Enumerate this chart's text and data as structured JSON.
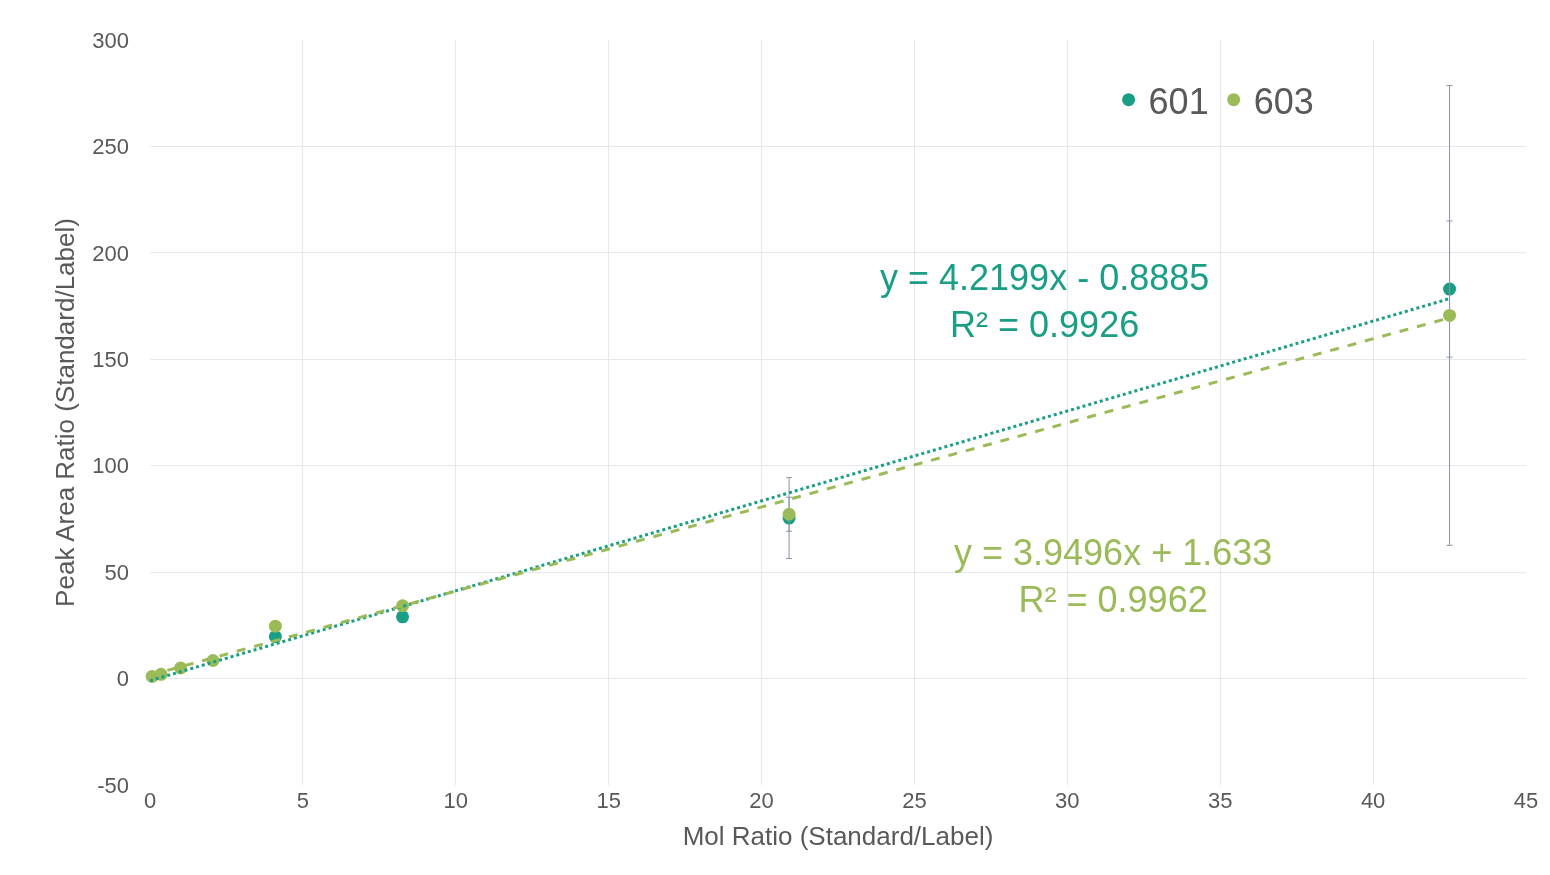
{
  "chart_data": {
    "type": "scatter",
    "xlabel": "Mol Ratio (Standard/Label)",
    "ylabel": "Peak Area Ratio (Standard/Label)",
    "xlim": [
      0,
      45
    ],
    "xticks": [
      0,
      5,
      10,
      15,
      20,
      25,
      30,
      35,
      40,
      45
    ],
    "ylim": [
      -50,
      300
    ],
    "yticks": [
      -50,
      0,
      50,
      100,
      150,
      200,
      250,
      300
    ],
    "grid": true,
    "legend": "top right",
    "marker": "circle",
    "series": [
      {
        "name": "601",
        "color": "#1a9e85",
        "x": [
          4.1,
          8.26,
          20.9,
          42.5
        ],
        "values": [
          19.7,
          29,
          75.4,
          183
        ],
        "errors": [
          null,
          null,
          19,
          32
        ]
      },
      {
        "name": "603",
        "color": "#9bbb59",
        "x": [
          0.07,
          0.36,
          1.0,
          2.06,
          4.1,
          8.26,
          20.9,
          42.5
        ],
        "values": [
          1,
          2,
          5,
          8.5,
          24.6,
          34.2,
          77.2,
          170.6
        ],
        "errors": [
          null,
          null,
          null,
          null,
          null,
          null,
          8,
          108
        ]
      },
      {
        "type": "line",
        "color": "#1a9e85",
        "line_style": "dotted",
        "marker": "none",
        "x": [
          0,
          42.5
        ],
        "values": [
          -1,
          178.5
        ]
      },
      {
        "type": "line",
        "color": "#9bbb59",
        "line_style": "dashed",
        "marker": "none",
        "x": [
          0,
          42.5
        ],
        "values": [
          1.6,
          169.5
        ]
      }
    ],
    "annotations": [
      "y = 4.2199x - 0.8885\nR² = 0.9926",
      "y = 3.9496x + 1.633\nR² = 0.9962"
    ]
  }
}
